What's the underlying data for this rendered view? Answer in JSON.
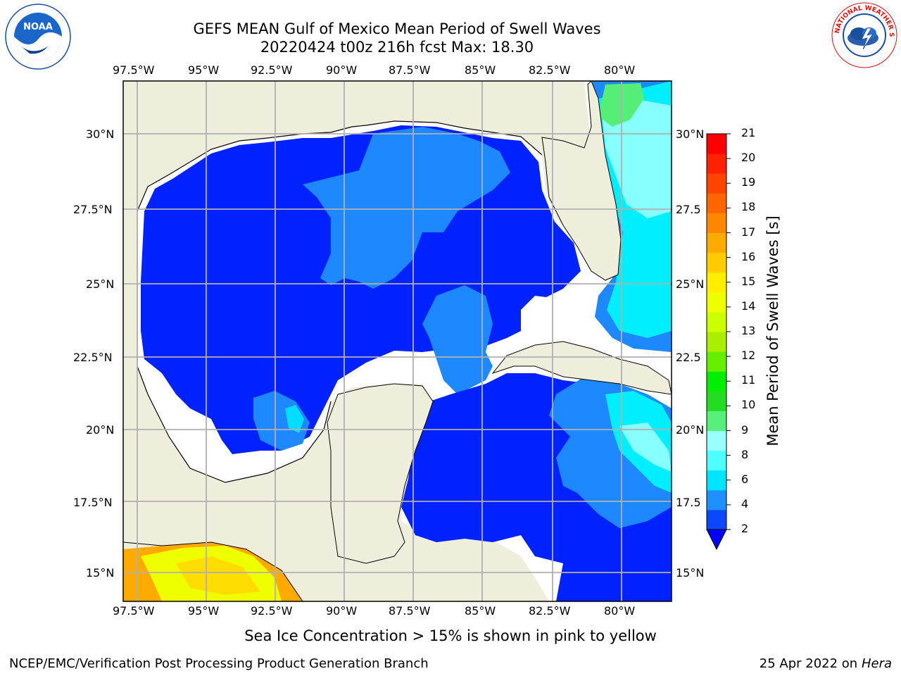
{
  "title": {
    "line1": "GEFS MEAN Gulf of Mexico Mean Period of Swell Waves",
    "line2": "20220424 t00z 216h fcst   Max: 18.30"
  },
  "caption": "Sea Ice Concentration > 15% is shown in pink to yellow",
  "footer": {
    "left": "NCEP/EMC/Verification Post Processing Product Generation Branch",
    "date": "25 Apr 2022 on ",
    "machine": "Hera"
  },
  "map": {
    "lon_labels": [
      "97.5°W",
      "95°W",
      "92.5°W",
      "90°W",
      "87.5°W",
      "85°W",
      "82.5°W",
      "80°W"
    ],
    "lat_labels_left": [
      "30°N",
      "27.5°N",
      "25°N",
      "22.5°N",
      "20°N",
      "17.5°N",
      "15°N"
    ],
    "lat_labels_right": [
      "30°N",
      "27.5",
      "25°N",
      "22.5",
      "20°N",
      "17.5",
      "15°N"
    ]
  },
  "colorbar": {
    "label": "Mean Period of Swell Waves [s]",
    "ticks": [
      "2",
      "4",
      "6",
      "8",
      "9",
      "10",
      "11",
      "12",
      "13",
      "14",
      "15",
      "16",
      "17",
      "18",
      "19",
      "20",
      "21"
    ],
    "colors": [
      "#0a47ff",
      "#1e90ff",
      "#00e5ff",
      "#4dffff",
      "#99ffff",
      "#55f07a",
      "#22dd22",
      "#00ee00",
      "#66ee00",
      "#aaee00",
      "#ccff00",
      "#eeff00",
      "#ffee00",
      "#ffcc00",
      "#ffaa00",
      "#ff8800",
      "#ff6600",
      "#ff4400",
      "#ff2200",
      "#ff0000"
    ],
    "extend_color": "#0000ff"
  },
  "colors": {
    "land": "#efeedd",
    "deep_blue": "#0022ff",
    "mid_blue": "#1e88ff",
    "cyan": "#00eeff",
    "light_cyan": "#88ffff",
    "green": "#55ee77",
    "yellow": "#f0ff00",
    "orange": "#ffaa00"
  },
  "logos": {
    "noaa": "NOAA",
    "nws": "NATIONAL WEATHER SERVICE"
  }
}
